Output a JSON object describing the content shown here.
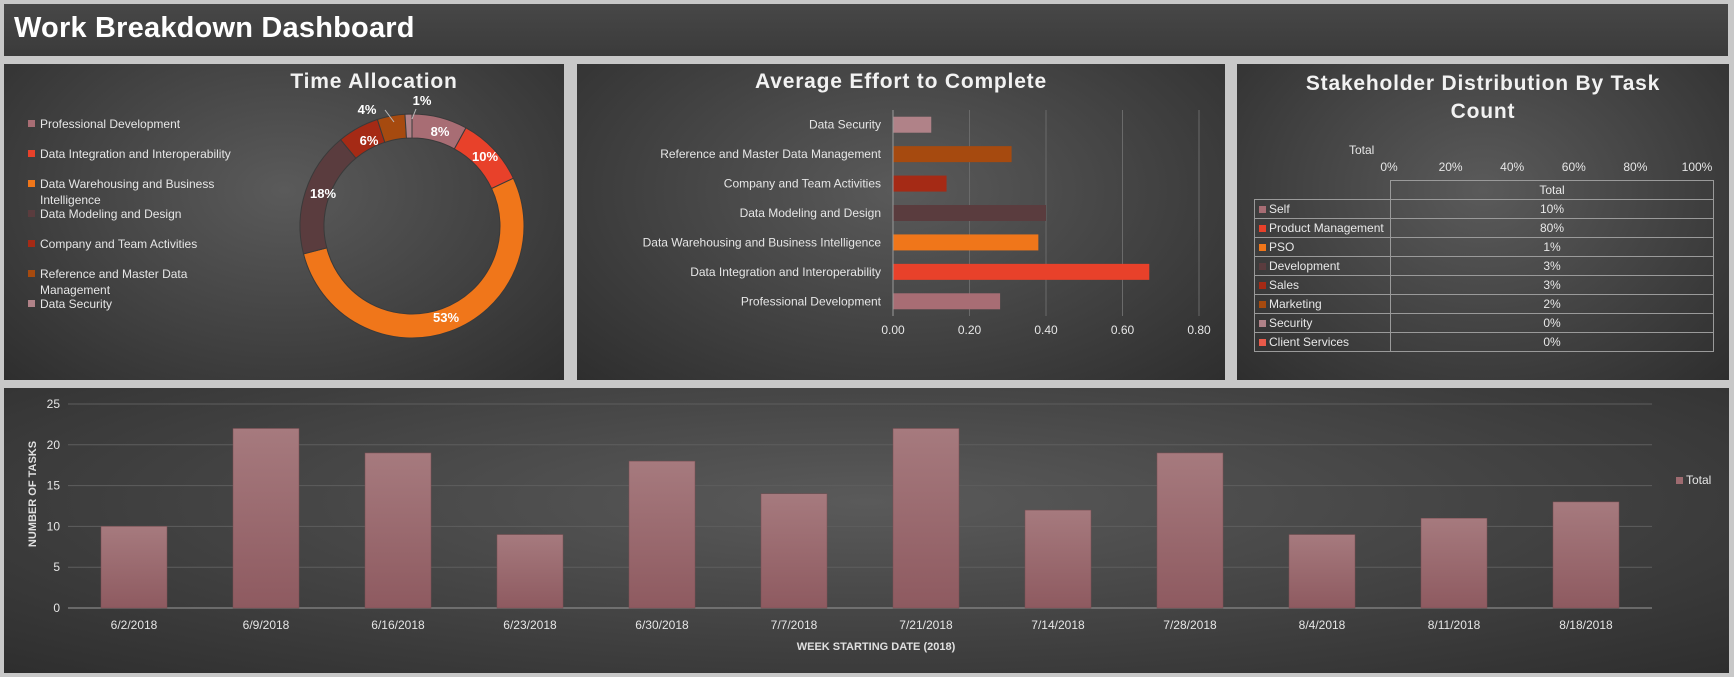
{
  "header": {
    "title": "Work Breakdown Dashboard"
  },
  "colors": {
    "professional_development": "#a86d74",
    "data_integration": "#e8412a",
    "data_warehousing": "#f0761a",
    "data_modeling": "#5a3c3e",
    "company_team": "#a52a15",
    "reference_master": "#a64a0f",
    "data_security": "#b08288",
    "bars": "#9e6b70"
  },
  "time_allocation": {
    "title": "Time Allocation",
    "legend": [
      {
        "label": "Professional Development",
        "color": "#a86d74",
        "icon": "square-swatch"
      },
      {
        "label": "Data Integration and Interoperability",
        "color": "#e8412a",
        "icon": "square-swatch"
      },
      {
        "label": "Data Warehousing and Business Intelligence",
        "color": "#f0761a",
        "icon": "square-swatch"
      },
      {
        "label": "Data Modeling and Design",
        "color": "#5a3c3e",
        "icon": "square-swatch"
      },
      {
        "label": "Company and Team Activities",
        "color": "#a52a15",
        "icon": "square-swatch"
      },
      {
        "label": "Reference and Master Data Management",
        "color": "#a64a0f",
        "icon": "square-swatch"
      },
      {
        "label": "Data Security",
        "color": "#b08288",
        "icon": "square-swatch"
      }
    ]
  },
  "effort": {
    "title": "Average Effort to Complete"
  },
  "stakeholder": {
    "title_line1": "Stakeholder Distribution By Task",
    "title_line2": "Count",
    "series_label": "Total",
    "ticks": [
      "0%",
      "20%",
      "40%",
      "60%",
      "80%",
      "100%"
    ],
    "column_header": "Total",
    "rows": [
      {
        "name": "Self",
        "value": "10%",
        "color": "#a86d74"
      },
      {
        "name": "Product Management",
        "value": "80%",
        "color": "#e8412a"
      },
      {
        "name": "PSO",
        "value": "1%",
        "color": "#f0761a"
      },
      {
        "name": "Development",
        "value": "3%",
        "color": "#5a3c3e"
      },
      {
        "name": "Sales",
        "value": "3%",
        "color": "#a52a15"
      },
      {
        "name": "Marketing",
        "value": "2%",
        "color": "#a64a0f"
      },
      {
        "name": "Security",
        "value": "0%",
        "color": "#b08288"
      },
      {
        "name": "Client Services",
        "value": "0%",
        "color": "#e85a4a"
      }
    ]
  },
  "tasks": {
    "legend_label": "Total"
  },
  "chart_data": [
    {
      "type": "pie",
      "title": "Time Allocation",
      "style": "donut",
      "slices": [
        {
          "label": "Professional Development",
          "value": 8,
          "display": "8%",
          "color": "#a86d74"
        },
        {
          "label": "Data Integration and Interoperability",
          "value": 10,
          "display": "10%",
          "color": "#e8412a"
        },
        {
          "label": "Data Warehousing and Business Intelligence",
          "value": 53,
          "display": "53%",
          "color": "#f0761a"
        },
        {
          "label": "Data Modeling and Design",
          "value": 18,
          "display": "18%",
          "color": "#5a3c3e"
        },
        {
          "label": "Company and Team Activities",
          "value": 6,
          "display": "6%",
          "color": "#a52a15"
        },
        {
          "label": "Reference and Master Data Management",
          "value": 4,
          "display": "4%",
          "color": "#a64a0f"
        },
        {
          "label": "Data Security",
          "value": 1,
          "display": "1%",
          "color": "#b08288"
        }
      ]
    },
    {
      "type": "bar",
      "orientation": "horizontal",
      "title": "Average Effort to Complete",
      "categories": [
        "Data Security",
        "Reference and Master Data Management",
        "Company and Team Activities",
        "Data Modeling and Design",
        "Data Warehousing and Business Intelligence",
        "Data Integration and Interoperability",
        "Professional Development"
      ],
      "values": [
        0.1,
        0.31,
        0.14,
        0.4,
        0.38,
        0.67,
        0.28
      ],
      "colors": [
        "#b08288",
        "#a64a0f",
        "#a52a15",
        "#5a3c3e",
        "#f0761a",
        "#e8412a",
        "#a86d74"
      ],
      "xlim": [
        0,
        0.8
      ],
      "xticks": [
        "0.00",
        "0.20",
        "0.40",
        "0.60",
        "0.80"
      ],
      "grid": true
    },
    {
      "type": "bar",
      "title": "",
      "categories": [
        "6/2/2018",
        "6/9/2018",
        "6/16/2018",
        "6/23/2018",
        "6/30/2018",
        "7/7/2018",
        "7/21/2018",
        "7/14/2018",
        "7/28/2018",
        "8/4/2018",
        "8/11/2018",
        "8/18/2018"
      ],
      "series": [
        {
          "name": "Total",
          "values": [
            10,
            22,
            19,
            9,
            18,
            14,
            22,
            12,
            19,
            9,
            11,
            13
          ]
        }
      ],
      "xlabel": "WEEK STARTING DATE (2018)",
      "ylabel": "NUMBER OF TASKS",
      "ylim": [
        0,
        25
      ],
      "yticks": [
        0,
        5,
        10,
        15,
        20,
        25
      ],
      "legend": "right",
      "grid": true
    }
  ]
}
